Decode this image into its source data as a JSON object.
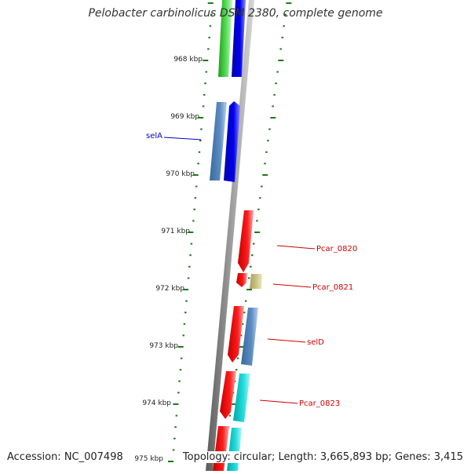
{
  "title": "Pelobacter carbinolicus DSM 2380, complete genome",
  "footer": {
    "accession": "Accession: NC_007498",
    "summary": "Topology: circular; Length: 3,665,893 bp; Genes: 3,415"
  },
  "colors": {
    "backbone": "#808080",
    "tick": "#1a7a1a",
    "left_label": "#0000cc",
    "right_label": "#cc0000",
    "green": "#33cc33",
    "blue": "#0000ee",
    "steel_blue": "#4a7fb5",
    "red": "#ee0000",
    "khaki": "#c8c07a",
    "cyan": "#00cccc"
  },
  "kbp_ticks": [
    "968 kbp",
    "969 kbp",
    "970 kbp",
    "971 kbp",
    "972 kbp",
    "973 kbp",
    "974 kbp",
    "975 kbp"
  ],
  "gene_labels_left": [
    {
      "text": "selA",
      "color": "blue"
    }
  ],
  "gene_labels_right": [
    {
      "text": "Pcar_0820",
      "color": "red"
    },
    {
      "text": "Pcar_0821",
      "color": "red"
    },
    {
      "text": "selD",
      "color": "red"
    },
    {
      "text": "Pcar_0823",
      "color": "red"
    }
  ]
}
